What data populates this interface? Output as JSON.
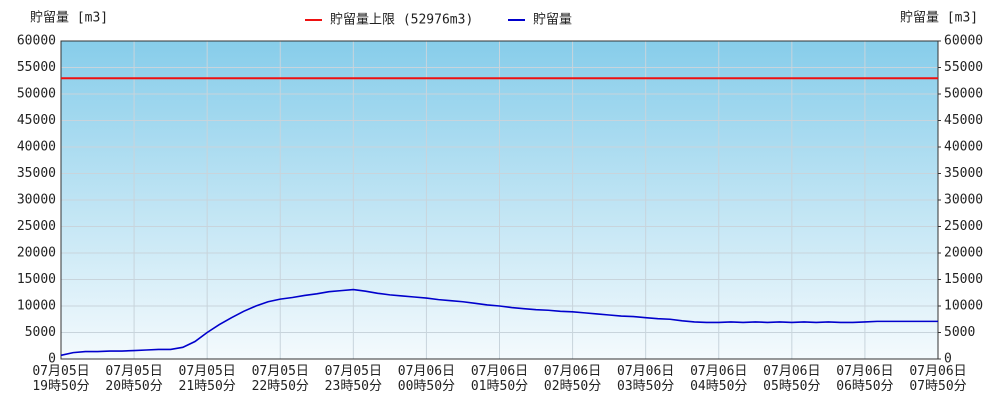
{
  "chart_data": {
    "type": "line",
    "y_label": "貯留量 [m3]",
    "y2_label": "貯留量 [m3]",
    "ylim": [
      0,
      60000
    ],
    "yticks": [
      0,
      5000,
      10000,
      15000,
      20000,
      25000,
      30000,
      35000,
      40000,
      45000,
      50000,
      55000,
      60000
    ],
    "y2lim": [
      0,
      60000
    ],
    "y2ticks": [
      0,
      5000,
      10000,
      15000,
      20000,
      25000,
      30000,
      35000,
      40000,
      45000,
      50000,
      55000,
      60000
    ],
    "grid": true,
    "limit": {
      "name": "貯留量上限 (52976m3)",
      "value": 52976,
      "color": "#ee1111"
    },
    "categories": [
      "07月05日 19時50分",
      null,
      null,
      null,
      null,
      null,
      "07月05日 20時50分",
      null,
      null,
      null,
      null,
      null,
      "07月05日 21時50分",
      null,
      null,
      null,
      null,
      null,
      "07月05日 22時50分",
      null,
      null,
      null,
      null,
      null,
      "07月05日 23時50分",
      null,
      null,
      null,
      null,
      null,
      "07月06日 00時50分",
      null,
      null,
      null,
      null,
      null,
      "07月06日 01時50分",
      null,
      null,
      null,
      null,
      null,
      "07月06日 02時50分",
      null,
      null,
      null,
      null,
      null,
      "07月06日 03時50分",
      null,
      null,
      null,
      null,
      null,
      "07月06日 04時50分",
      null,
      null,
      null,
      null,
      null,
      "07月06日 05時50分",
      null,
      null,
      null,
      null,
      null,
      "07月06日 06時50分",
      null,
      null,
      null,
      null,
      null,
      "07月06日 07時50分"
    ],
    "series": [
      {
        "name": "貯留量",
        "color": "#0000cc",
        "values": [
          700,
          1200,
          1400,
          1400,
          1500,
          1500,
          1600,
          1700,
          1800,
          1800,
          2200,
          3300,
          5000,
          6500,
          7800,
          9000,
          10000,
          10800,
          11300,
          11600,
          12000,
          12300,
          12700,
          12900,
          13100,
          12800,
          12400,
          12100,
          11900,
          11700,
          11500,
          11200,
          11000,
          10800,
          10500,
          10200,
          10000,
          9700,
          9500,
          9300,
          9200,
          9000,
          8900,
          8700,
          8500,
          8300,
          8100,
          8000,
          7800,
          7600,
          7500,
          7200,
          7000,
          6900,
          6900,
          7000,
          6900,
          7000,
          6900,
          7000,
          6900,
          7000,
          6900,
          7000,
          6900,
          6900,
          7000,
          7100,
          7100,
          7100,
          7100,
          7100,
          7100
        ]
      }
    ]
  }
}
